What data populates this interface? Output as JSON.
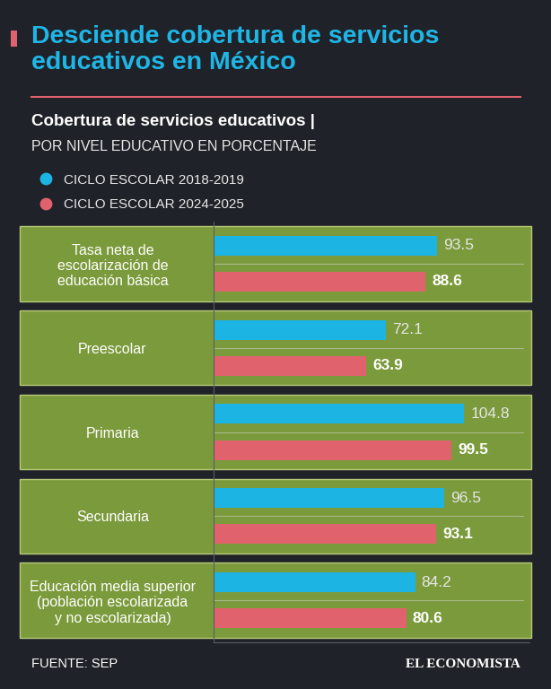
{
  "chart_data": {
    "type": "bar",
    "orientation": "horizontal",
    "title": "Desciende cobertura de servicios educativos en México",
    "subtitle": "Cobertura de servicios educativos |",
    "subtitle2": "POR NIVEL EDUCATIVO EN PORCENTAJE",
    "categories": [
      "Tasa neta de escolarización de educación básica",
      "Preescolar",
      "Primaria",
      "Secundaria",
      "Educación media superior (población escolarizada y no escolarizada)"
    ],
    "series": [
      {
        "name": "CICLO ESCOLAR 2018-2019",
        "color": "#1cb4e2",
        "values": [
          93.5,
          72.1,
          104.8,
          96.5,
          84.2
        ]
      },
      {
        "name": "CICLO ESCOLAR 2024-2025",
        "color": "#e0626c",
        "values": [
          88.6,
          63.9,
          99.5,
          93.1,
          80.6
        ]
      }
    ],
    "xlim": [
      0,
      132
    ],
    "data_labels": true,
    "tick_labels": "y",
    "legend": "upper left",
    "source": "FUENTE: SEP",
    "brand": "EL ECONOMISTA"
  }
}
